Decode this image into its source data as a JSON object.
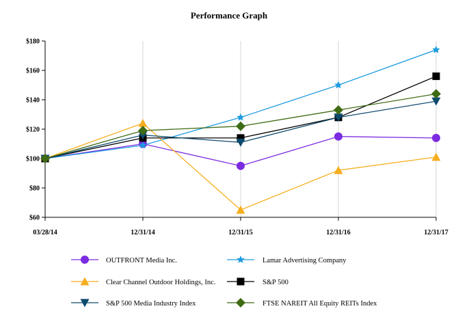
{
  "chart_data": {
    "type": "line",
    "title": "Performance Graph",
    "xlabel": "",
    "ylabel": "",
    "categories": [
      "03/28/14",
      "12/31/14",
      "12/31/15",
      "12/31/16",
      "12/31/17"
    ],
    "ylim": [
      60,
      180
    ],
    "yticks": [
      60,
      80,
      100,
      120,
      140,
      160,
      180
    ],
    "ytick_labels": [
      "$60",
      "$80",
      "$100",
      "$120",
      "$140",
      "$160",
      "$180"
    ],
    "grid": "vertical",
    "legend_position": "bottom",
    "series": [
      {
        "name": "OUTFRONT Media Inc.",
        "color": "#7b2be0",
        "marker": "circle",
        "values": [
          100,
          110,
          95,
          115,
          114
        ]
      },
      {
        "name": "Lamar Advertising Company",
        "color": "#1e9be0",
        "marker": "star",
        "values": [
          100,
          109,
          128,
          150,
          174
        ]
      },
      {
        "name": "Clear Channel Outdoor Holdings, Inc.",
        "color": "#f5ae1e",
        "marker": "triangle-up",
        "values": [
          100,
          124,
          65,
          92,
          101
        ]
      },
      {
        "name": "S&P 500",
        "color": "#000000",
        "marker": "square",
        "values": [
          100,
          114,
          114,
          128,
          156
        ]
      },
      {
        "name": "S&P 500 Media Industry Index",
        "color": "#0d4a6e",
        "marker": "triangle-down",
        "values": [
          100,
          116,
          111,
          128,
          139
        ]
      },
      {
        "name": "FTSE NAREIT All Equity REITs Index",
        "color": "#3f6b14",
        "marker": "diamond",
        "values": [
          100,
          119,
          122,
          133,
          144
        ]
      }
    ]
  }
}
